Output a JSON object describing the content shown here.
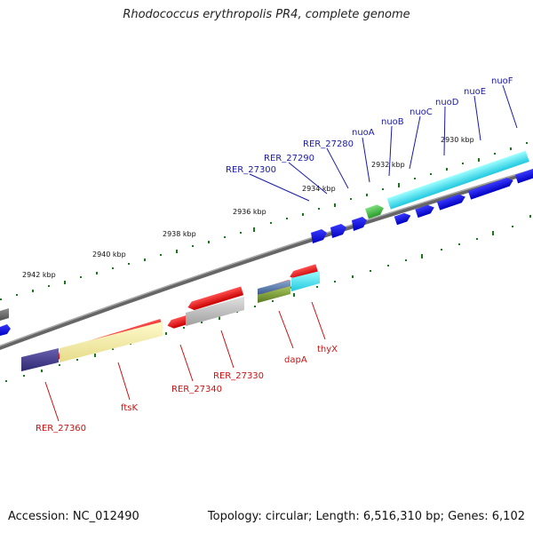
{
  "title": "Rhodococcus erythropolis PR4, complete genome",
  "footer": {
    "accession": "Accession: NC_012490",
    "summary": "Topology: circular; Length: 6,516,310 bp; Genes: 6,102"
  },
  "colors": {
    "backbone": "#808080",
    "tick": "#1a7a1a",
    "blue_label": "#1a1aaa",
    "red_label": "#cc1111"
  },
  "ticks": [
    "2942 kbp",
    "2940 kbp",
    "2938 kbp",
    "2936 kbp",
    "2934 kbp",
    "2932 kbp",
    "2930 kbp"
  ],
  "genes_top": [
    "RER_27300",
    "RER_27290",
    "RER_27280",
    "nuoA",
    "nuoB",
    "nuoC",
    "nuoD",
    "nuoE",
    "nuoF"
  ],
  "genes_bottom": [
    "RER_27360",
    "ftsK",
    "RER_27340",
    "RER_27330",
    "dapA",
    "thyX"
  ]
}
